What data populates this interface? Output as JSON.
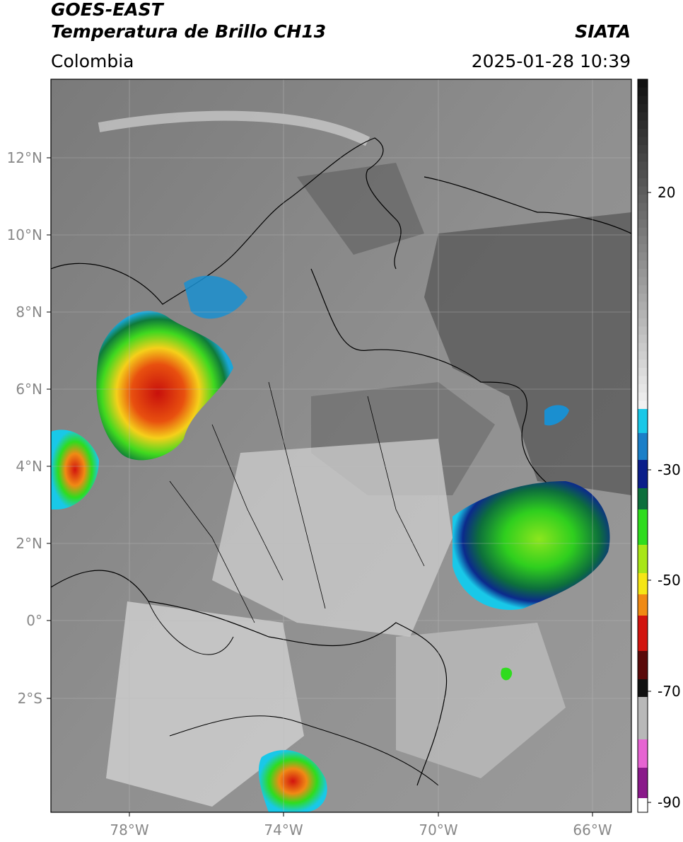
{
  "header": {
    "satellite": "GOES-EAST",
    "product": "Temperatura de Brillo CH13",
    "region": "Colombia",
    "source": "SIATA",
    "datetime": "2025-01-28 10:39"
  },
  "axes": {
    "lat_ticks": [
      "12°N",
      "10°N",
      "8°N",
      "6°N",
      "4°N",
      "2°N",
      "0°",
      "2°S"
    ],
    "lon_ticks": [
      "78°W",
      "74°W",
      "70°W",
      "66°W"
    ]
  },
  "colorbar": {
    "ticks": [
      "20",
      "-30",
      "-50",
      "-70",
      "-90"
    ],
    "colors": {
      "gray_top": "#111111",
      "gray_bottom": "#f2f2f2",
      "cyan": "#19c8e8",
      "blue": "#0a1e8a",
      "green": "#2fdc1e",
      "yellow": "#f5e616",
      "orange": "#f08a14",
      "red": "#d2140f",
      "darkred": "#5a0a0a",
      "magenta": "#e664d2",
      "purple": "#8a1a8a"
    }
  },
  "map_colors": {
    "background_gray": "#8a8a8a",
    "dark_gray": "#555555",
    "light_gray": "#d8d8d8",
    "border": "#000000"
  }
}
